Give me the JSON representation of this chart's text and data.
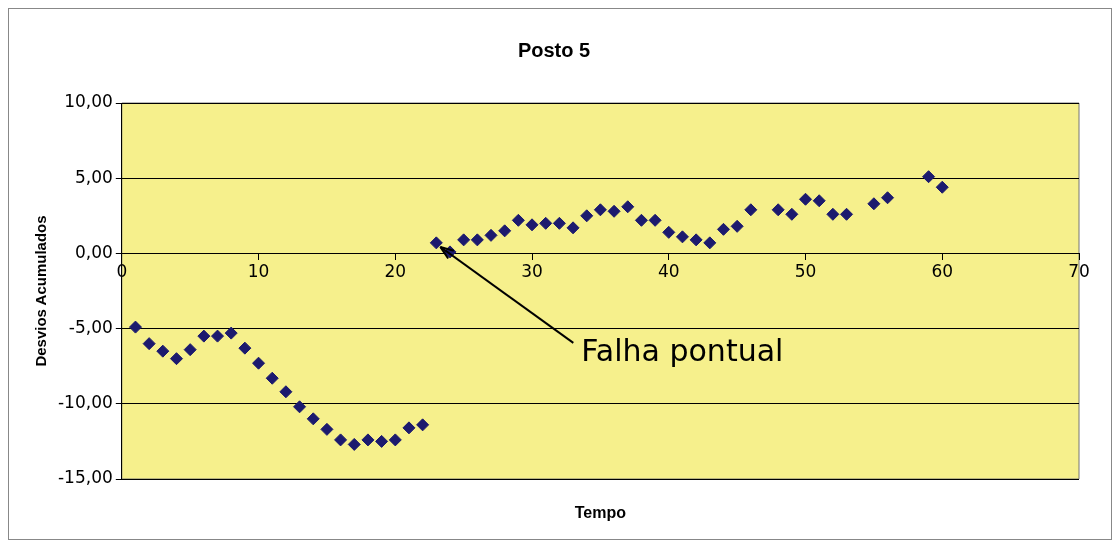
{
  "chart_data": {
    "type": "scatter",
    "title": "Posto 5",
    "xlabel": "Tempo",
    "ylabel": "Desvios Acumulados",
    "x": [
      1,
      2,
      3,
      4,
      5,
      6,
      7,
      8,
      9,
      10,
      11,
      12,
      13,
      14,
      15,
      16,
      17,
      18,
      19,
      20,
      21,
      22,
      23,
      24,
      25,
      26,
      27,
      28,
      29,
      30,
      31,
      32,
      33,
      34,
      35,
      36,
      37,
      38,
      39,
      40,
      41,
      42,
      43,
      44,
      45,
      46,
      48,
      49,
      50,
      51,
      52,
      53,
      55,
      56,
      59,
      60
    ],
    "series": [
      {
        "color": "#1c1a6e",
        "values": [
          -4.9,
          -6.0,
          -6.5,
          -7.0,
          -6.4,
          -5.5,
          -5.5,
          -5.3,
          -6.3,
          -7.3,
          -8.3,
          -9.2,
          -10.2,
          -11.0,
          -11.7,
          -12.4,
          -12.7,
          -12.4,
          -12.5,
          -12.4,
          -11.6,
          -11.4,
          0.7,
          0.1,
          0.9,
          0.9,
          1.2,
          1.5,
          2.2,
          1.9,
          2.0,
          2.0,
          1.7,
          2.5,
          2.9,
          2.8,
          3.1,
          2.2,
          2.2,
          1.4,
          1.1,
          0.9,
          0.7,
          1.6,
          1.8,
          2.9,
          2.9,
          2.6,
          3.6,
          3.5,
          2.6,
          2.6,
          3.3,
          3.7,
          5.1,
          4.4
        ]
      }
    ],
    "xlim": [
      0,
      70
    ],
    "xticks": [
      0,
      10,
      20,
      30,
      40,
      50,
      60,
      70
    ],
    "ylim": [
      -15,
      10
    ],
    "yticks": [
      {
        "value": -15,
        "label": "-15,00"
      },
      {
        "value": -10,
        "label": "-10,00"
      },
      {
        "value": -5,
        "label": "-5,00"
      },
      {
        "value": 0,
        "label": "0,00"
      },
      {
        "value": 5,
        "label": "5,00"
      },
      {
        "value": 10,
        "label": "10,00"
      }
    ],
    "grid": "y",
    "marker": "diamond",
    "legend": false,
    "annotations": [
      {
        "text": "Falha pontual",
        "x": 23,
        "y": 0.7
      }
    ]
  }
}
